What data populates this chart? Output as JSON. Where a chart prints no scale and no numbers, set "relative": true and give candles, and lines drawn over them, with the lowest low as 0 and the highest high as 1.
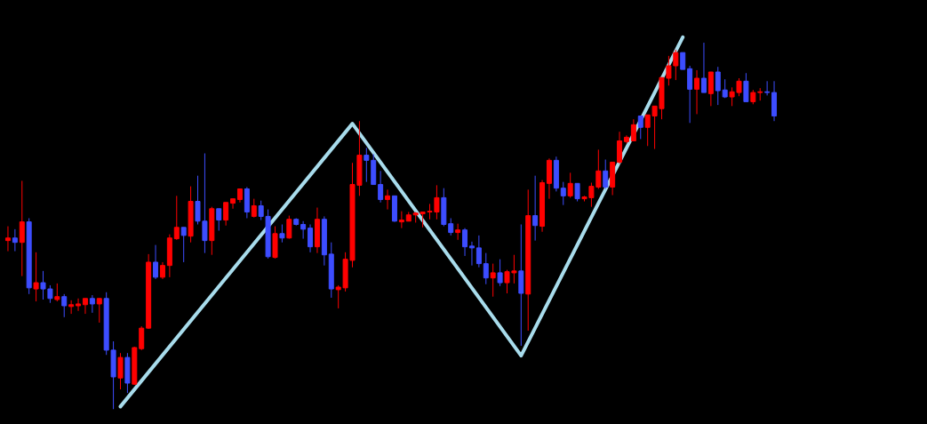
{
  "chart_data": {
    "type": "candlestick",
    "relative": true,
    "categories": [
      null,
      null,
      null,
      null,
      null,
      null,
      null,
      null,
      null,
      null,
      null,
      null,
      null,
      null,
      null,
      null,
      null,
      null,
      null,
      null,
      null,
      null,
      null,
      null,
      null,
      null,
      null,
      null,
      null,
      null,
      null,
      null,
      null,
      null,
      null,
      null,
      null,
      null,
      null,
      null,
      null,
      null,
      null,
      null,
      null,
      null,
      null,
      null,
      null,
      null,
      null,
      null,
      null,
      null,
      null,
      null,
      null,
      null,
      null,
      null,
      null,
      null,
      null,
      null,
      null,
      null,
      null,
      null,
      null,
      null,
      null,
      null,
      null,
      null,
      null,
      null,
      null,
      null,
      null,
      null,
      null,
      null,
      null,
      null,
      null,
      null,
      null,
      null,
      null,
      null,
      null,
      null,
      null,
      null,
      null,
      null,
      null,
      null,
      null,
      null,
      null,
      null,
      null,
      null,
      null,
      null,
      null,
      null,
      null,
      null
    ],
    "ohlc": [
      [
        0.46,
        0.499,
        0.431,
        0.467
      ],
      [
        0.467,
        0.491,
        0.431,
        0.455
      ],
      [
        0.455,
        0.623,
        0.363,
        0.511
      ],
      [
        0.511,
        0.521,
        0.314,
        0.331
      ],
      [
        0.328,
        0.428,
        0.294,
        0.345
      ],
      [
        0.345,
        0.377,
        0.299,
        0.328
      ],
      [
        0.328,
        0.338,
        0.29,
        0.302
      ],
      [
        0.299,
        0.343,
        0.294,
        0.307
      ],
      [
        0.307,
        0.314,
        0.251,
        0.282
      ],
      [
        0.28,
        0.297,
        0.26,
        0.285
      ],
      [
        0.282,
        0.302,
        0.268,
        0.287
      ],
      [
        0.285,
        0.302,
        0.26,
        0.302
      ],
      [
        0.302,
        0.311,
        0.263,
        0.287
      ],
      [
        0.287,
        0.302,
        0.236,
        0.302
      ],
      [
        0.302,
        0.319,
        0.148,
        0.161
      ],
      [
        0.161,
        0.185,
        0.0,
        0.088
      ],
      [
        0.085,
        0.153,
        0.054,
        0.141
      ],
      [
        0.141,
        0.153,
        0.044,
        0.071
      ],
      [
        0.068,
        0.17,
        0.066,
        0.168
      ],
      [
        0.165,
        0.226,
        0.161,
        0.221
      ],
      [
        0.221,
        0.423,
        0.219,
        0.401
      ],
      [
        0.401,
        0.448,
        0.355,
        0.36
      ],
      [
        0.36,
        0.401,
        0.355,
        0.392
      ],
      [
        0.392,
        0.477,
        0.36,
        0.467
      ],
      [
        0.465,
        0.582,
        0.462,
        0.496
      ],
      [
        0.496,
        0.496,
        0.401,
        0.474
      ],
      [
        0.472,
        0.608,
        0.455,
        0.567
      ],
      [
        0.567,
        0.637,
        0.504,
        0.513
      ],
      [
        0.513,
        0.698,
        0.426,
        0.46
      ],
      [
        0.46,
        0.552,
        0.421,
        0.547
      ],
      [
        0.547,
        0.547,
        0.487,
        0.516
      ],
      [
        0.516,
        0.564,
        0.501,
        0.564
      ],
      [
        0.562,
        0.574,
        0.547,
        0.574
      ],
      [
        0.572,
        0.601,
        0.564,
        0.601
      ],
      [
        0.601,
        0.606,
        0.521,
        0.538
      ],
      [
        0.526,
        0.574,
        0.523,
        0.555
      ],
      [
        0.555,
        0.569,
        0.516,
        0.526
      ],
      [
        0.526,
        0.545,
        0.411,
        0.416
      ],
      [
        0.414,
        0.499,
        0.411,
        0.479
      ],
      [
        0.479,
        0.504,
        0.455,
        0.467
      ],
      [
        0.467,
        0.528,
        0.465,
        0.518
      ],
      [
        0.518,
        0.521,
        0.501,
        0.504
      ],
      [
        0.504,
        0.513,
        0.465,
        0.491
      ],
      [
        0.494,
        0.504,
        0.428,
        0.443
      ],
      [
        0.443,
        0.55,
        0.426,
        0.518
      ],
      [
        0.518,
        0.526,
        0.392,
        0.421
      ],
      [
        0.423,
        0.455,
        0.304,
        0.328
      ],
      [
        0.326,
        0.338,
        0.275,
        0.333
      ],
      [
        0.331,
        0.428,
        0.321,
        0.409
      ],
      [
        0.406,
        0.672,
        0.387,
        0.613
      ],
      [
        0.611,
        0.786,
        0.582,
        0.693
      ],
      [
        0.693,
        0.713,
        0.62,
        0.679
      ],
      [
        0.679,
        0.696,
        0.613,
        0.613
      ],
      [
        0.613,
        0.65,
        0.564,
        0.572
      ],
      [
        0.572,
        0.599,
        0.545,
        0.582
      ],
      [
        0.582,
        0.582,
        0.511,
        0.513
      ],
      [
        0.511,
        0.54,
        0.494,
        0.516
      ],
      [
        0.513,
        0.538,
        0.513,
        0.53
      ],
      [
        0.53,
        0.538,
        0.509,
        0.535
      ],
      [
        0.533,
        0.538,
        0.496,
        0.538
      ],
      [
        0.538,
        0.56,
        0.518,
        0.54
      ],
      [
        0.538,
        0.611,
        0.518,
        0.577
      ],
      [
        0.577,
        0.603,
        0.499,
        0.504
      ],
      [
        0.506,
        0.521,
        0.474,
        0.482
      ],
      [
        0.482,
        0.506,
        0.462,
        0.489
      ],
      [
        0.489,
        0.494,
        0.418,
        0.443
      ],
      [
        0.445,
        0.457,
        0.392,
        0.44
      ],
      [
        0.44,
        0.474,
        0.387,
        0.397
      ],
      [
        0.397,
        0.426,
        0.341,
        0.358
      ],
      [
        0.358,
        0.397,
        0.307,
        0.372
      ],
      [
        0.372,
        0.409,
        0.336,
        0.345
      ],
      [
        0.345,
        0.38,
        0.316,
        0.375
      ],
      [
        0.372,
        0.421,
        0.343,
        0.377
      ],
      [
        0.377,
        0.504,
        0.173,
        0.316
      ],
      [
        0.314,
        0.599,
        0.214,
        0.528
      ],
      [
        0.528,
        0.637,
        0.46,
        0.501
      ],
      [
        0.499,
        0.625,
        0.484,
        0.618
      ],
      [
        0.616,
        0.684,
        0.574,
        0.679
      ],
      [
        0.679,
        0.689,
        0.594,
        0.603
      ],
      [
        0.603,
        0.62,
        0.557,
        0.582
      ],
      [
        0.582,
        0.645,
        0.577,
        0.616
      ],
      [
        0.616,
        0.616,
        0.567,
        0.574
      ],
      [
        0.574,
        0.582,
        0.567,
        0.579
      ],
      [
        0.577,
        0.618,
        0.552,
        0.608
      ],
      [
        0.606,
        0.708,
        0.601,
        0.65
      ],
      [
        0.65,
        0.681,
        0.601,
        0.606
      ],
      [
        0.606,
        0.674,
        0.584,
        0.674
      ],
      [
        0.674,
        0.757,
        0.669,
        0.732
      ],
      [
        0.73,
        0.747,
        0.725,
        0.742
      ],
      [
        0.732,
        0.791,
        0.732,
        0.776
      ],
      [
        0.8,
        0.8,
        0.737,
        0.769
      ],
      [
        0.769,
        0.803,
        0.718,
        0.803
      ],
      [
        0.8,
        0.827,
        0.71,
        0.827
      ],
      [
        0.82,
        0.905,
        0.791,
        0.905
      ],
      [
        0.903,
        0.964,
        0.883,
        0.937
      ],
      [
        0.937,
        0.981,
        0.898,
        0.973
      ],
      [
        0.973,
        0.973,
        0.927,
        0.927
      ],
      [
        0.929,
        0.937,
        0.781,
        0.873
      ],
      [
        0.873,
        0.925,
        0.805,
        0.903
      ],
      [
        0.903,
        1.0,
        0.864,
        0.864
      ],
      [
        0.861,
        0.92,
        0.827,
        0.92
      ],
      [
        0.92,
        0.934,
        0.83,
        0.869
      ],
      [
        0.871,
        0.9,
        0.849,
        0.852
      ],
      [
        0.852,
        0.878,
        0.827,
        0.866
      ],
      [
        0.864,
        0.903,
        0.854,
        0.895
      ],
      [
        0.895,
        0.917,
        0.839,
        0.839
      ],
      [
        0.839,
        0.871,
        0.832,
        0.864
      ],
      [
        0.864,
        0.876,
        0.842,
        0.866
      ],
      [
        0.866,
        0.895,
        0.856,
        0.864
      ],
      [
        0.864,
        0.895,
        0.786,
        0.8
      ]
    ],
    "colors": [
      "#ff0000",
      "#3d4dff",
      "#ff0000",
      "#3d4dff",
      "#ff0000",
      "#3d4dff",
      "#3d4dff",
      "#ff0000",
      "#3d4dff",
      "#ff0000",
      "#ff0000",
      "#ff0000",
      "#3d4dff",
      "#ff0000",
      "#3d4dff",
      "#3d4dff",
      "#ff0000",
      "#3d4dff",
      "#ff0000",
      "#ff0000",
      "#ff0000",
      "#3d4dff",
      "#ff0000",
      "#ff0000",
      "#ff0000",
      "#3d4dff",
      "#ff0000",
      "#3d4dff",
      "#3d4dff",
      "#ff0000",
      "#3d4dff",
      "#ff0000",
      "#ff0000",
      "#ff0000",
      "#3d4dff",
      "#ff0000",
      "#3d4dff",
      "#3d4dff",
      "#ff0000",
      "#3d4dff",
      "#ff0000",
      "#3d4dff",
      "#3d4dff",
      "#3d4dff",
      "#ff0000",
      "#3d4dff",
      "#3d4dff",
      "#ff0000",
      "#ff0000",
      "#ff0000",
      "#ff0000",
      "#3d4dff",
      "#3d4dff",
      "#3d4dff",
      "#ff0000",
      "#3d4dff",
      "#ff0000",
      "#ff0000",
      "#ff0000",
      "#ff0000",
      "#ff0000",
      "#ff0000",
      "#3d4dff",
      "#3d4dff",
      "#ff0000",
      "#3d4dff",
      "#3d4dff",
      "#3d4dff",
      "#3d4dff",
      "#ff0000",
      "#3d4dff",
      "#ff0000",
      "#ff0000",
      "#3d4dff",
      "#ff0000",
      "#3d4dff",
      "#ff0000",
      "#ff0000",
      "#3d4dff",
      "#3d4dff",
      "#ff0000",
      "#3d4dff",
      "#ff0000",
      "#ff0000",
      "#ff0000",
      "#3d4dff",
      "#ff0000",
      "#ff0000",
      "#ff0000",
      "#ff0000",
      "#3d4dff",
      "#ff0000",
      "#ff0000",
      "#ff0000",
      "#ff0000",
      "#ff0000",
      "#3d4dff",
      "#3d4dff",
      "#ff0000",
      "#3d4dff",
      "#ff0000",
      "#3d4dff",
      "#3d4dff",
      "#ff0000",
      "#ff0000",
      "#3d4dff",
      "#ff0000",
      "#ff0000",
      "#3d4dff",
      "#3d4dff"
    ],
    "series": [
      {
        "type": "line",
        "color": "#a8dcec",
        "values": [
          null,
          null,
          null,
          null,
          null,
          null,
          null,
          null,
          null,
          null,
          null,
          null,
          null,
          null,
          null,
          null,
          0.007,
          null,
          null,
          null,
          null,
          null,
          null,
          null,
          null,
          null,
          null,
          null,
          null,
          null,
          null,
          null,
          null,
          null,
          null,
          null,
          null,
          null,
          null,
          null,
          null,
          null,
          null,
          null,
          null,
          null,
          null,
          null,
          null,
          0.779,
          null,
          null,
          null,
          null,
          null,
          null,
          null,
          null,
          null,
          null,
          null,
          null,
          null,
          null,
          null,
          null,
          null,
          null,
          null,
          null,
          null,
          null,
          null,
          0.146,
          null,
          null,
          null,
          null,
          null,
          null,
          null,
          null,
          null,
          null,
          null,
          null,
          null,
          null,
          null,
          null,
          null,
          null,
          null,
          null,
          null,
          null,
          1.015,
          null,
          null,
          null,
          null,
          null,
          null,
          null,
          null,
          null,
          null,
          null,
          null,
          null
        ]
      }
    ]
  }
}
